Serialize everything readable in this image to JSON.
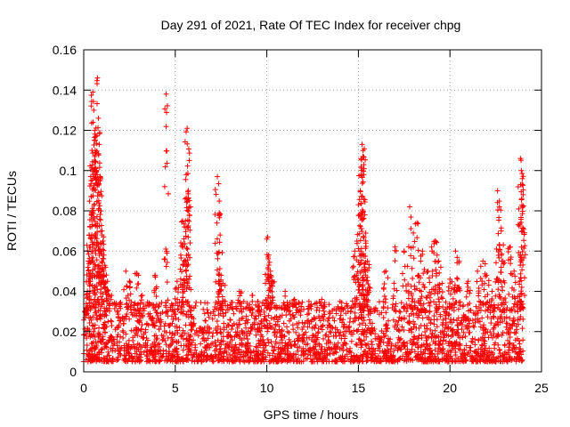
{
  "chart_data": {
    "type": "scatter",
    "title": "Day 291 of 2021, Rate Of TEC Index for receiver chpg",
    "xlabel": "GPS time / hours",
    "ylabel": "ROTI / TECUs",
    "xlim": [
      0,
      25
    ],
    "ylim": [
      0,
      0.16
    ],
    "x_ticks": [
      "0",
      "5",
      "10",
      "15",
      "20",
      "25"
    ],
    "y_ticks": [
      "0",
      "0.02",
      "0.04",
      "0.06",
      "0.08",
      "0.1",
      "0.12",
      "0.14",
      "0.16"
    ],
    "grid": true,
    "marker": "+",
    "series_color": "#ff0000",
    "series": [
      {
        "name": "ROTI",
        "baseline_band": {
          "x_range": [
            0,
            24
          ],
          "typical_min": 0.005,
          "typical_max": 0.035
        },
        "points": [
          [
            0.15,
            0.028
          ],
          [
            0.2,
            0.04
          ],
          [
            0.25,
            0.055
          ],
          [
            0.3,
            0.068
          ],
          [
            0.35,
            0.072
          ],
          [
            0.4,
            0.095
          ],
          [
            0.45,
            0.11
          ],
          [
            0.5,
            0.139
          ],
          [
            0.55,
            0.13
          ],
          [
            0.6,
            0.107
          ],
          [
            0.65,
            0.117
          ],
          [
            0.7,
            0.1
          ],
          [
            0.75,
            0.146
          ],
          [
            0.8,
            0.126
          ],
          [
            0.85,
            0.113
          ],
          [
            0.9,
            0.095
          ],
          [
            0.95,
            0.08
          ],
          [
            1.0,
            0.07
          ],
          [
            1.05,
            0.065
          ],
          [
            1.1,
            0.058
          ],
          [
            1.2,
            0.052
          ],
          [
            1.3,
            0.045
          ],
          [
            1.4,
            0.038
          ],
          [
            2.3,
            0.05
          ],
          [
            2.5,
            0.045
          ],
          [
            2.9,
            0.049
          ],
          [
            3.2,
            0.038
          ],
          [
            3.9,
            0.048
          ],
          [
            4.5,
            0.138
          ],
          [
            5.1,
            0.045
          ],
          [
            5.3,
            0.058
          ],
          [
            5.4,
            0.075
          ],
          [
            5.5,
            0.072
          ],
          [
            5.6,
            0.098
          ],
          [
            5.65,
            0.121
          ],
          [
            5.7,
            0.086
          ],
          [
            5.75,
            0.082
          ],
          [
            7.3,
            0.097
          ],
          [
            7.4,
            0.079
          ],
          [
            7.45,
            0.068
          ],
          [
            7.5,
            0.048
          ],
          [
            7.6,
            0.044
          ],
          [
            8.5,
            0.04
          ],
          [
            9.2,
            0.038
          ],
          [
            9.5,
            0.035
          ],
          [
            10.0,
            0.066
          ],
          [
            10.05,
            0.067
          ],
          [
            10.1,
            0.058
          ],
          [
            10.2,
            0.05
          ],
          [
            10.3,
            0.045
          ],
          [
            11.0,
            0.04
          ],
          [
            11.5,
            0.036
          ],
          [
            12.3,
            0.035
          ],
          [
            13.0,
            0.036
          ],
          [
            14.0,
            0.035
          ],
          [
            14.8,
            0.06
          ],
          [
            14.9,
            0.048
          ],
          [
            15.0,
            0.083
          ],
          [
            15.1,
            0.09
          ],
          [
            15.15,
            0.102
          ],
          [
            15.2,
            0.113
          ],
          [
            15.25,
            0.107
          ],
          [
            15.3,
            0.098
          ],
          [
            15.35,
            0.078
          ],
          [
            15.4,
            0.065
          ],
          [
            15.5,
            0.055
          ],
          [
            15.6,
            0.042
          ],
          [
            16.5,
            0.05
          ],
          [
            17.0,
            0.062
          ],
          [
            17.5,
            0.06
          ],
          [
            17.8,
            0.082
          ],
          [
            18.0,
            0.069
          ],
          [
            18.2,
            0.074
          ],
          [
            18.4,
            0.055
          ],
          [
            18.5,
            0.06
          ],
          [
            18.8,
            0.05
          ],
          [
            19.0,
            0.062
          ],
          [
            19.2,
            0.065
          ],
          [
            19.3,
            0.058
          ],
          [
            19.5,
            0.052
          ],
          [
            20.0,
            0.046
          ],
          [
            20.3,
            0.06
          ],
          [
            20.5,
            0.055
          ],
          [
            21.0,
            0.045
          ],
          [
            21.5,
            0.05
          ],
          [
            21.8,
            0.055
          ],
          [
            22.0,
            0.048
          ],
          [
            22.3,
            0.04
          ],
          [
            22.6,
            0.09
          ],
          [
            22.7,
            0.082
          ],
          [
            22.8,
            0.07
          ],
          [
            22.9,
            0.055
          ],
          [
            23.3,
            0.062
          ],
          [
            23.5,
            0.05
          ],
          [
            23.8,
            0.045
          ],
          [
            23.85,
            0.106
          ],
          [
            23.9,
            0.1
          ],
          [
            23.95,
            0.096
          ],
          [
            24.0,
            0.088
          ]
        ]
      }
    ]
  }
}
